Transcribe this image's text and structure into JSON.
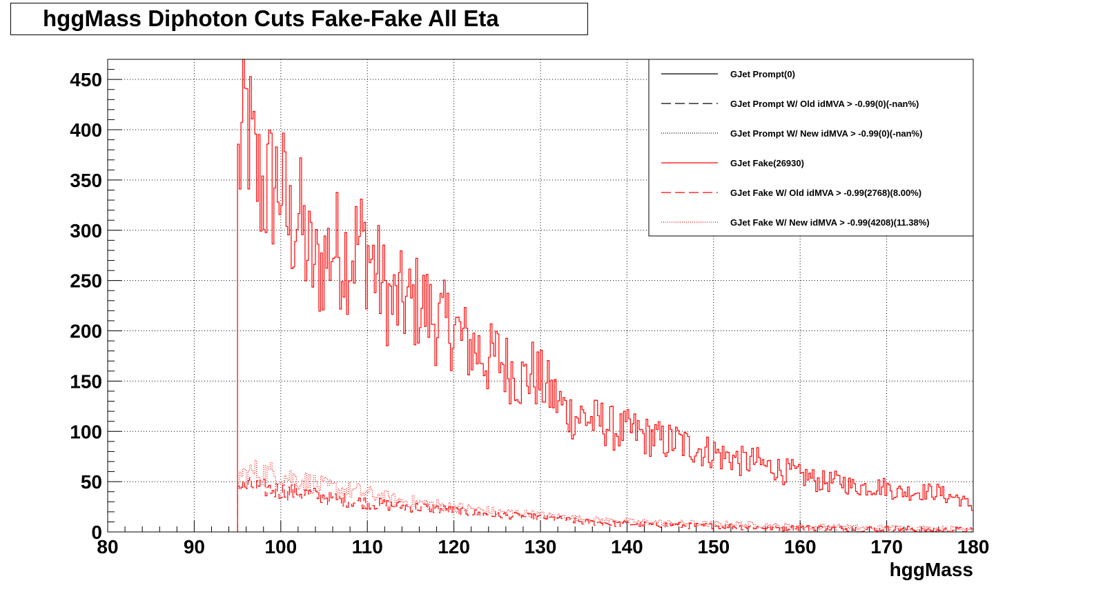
{
  "chart_data": {
    "type": "step-histogram",
    "title": "hggMass Diphoton Cuts Fake-Fake All Eta",
    "xlabel": "hggMass",
    "ylabel": "",
    "xlim": [
      80,
      180
    ],
    "ylim": [
      0,
      470
    ],
    "x_ticks": [
      "80",
      "90",
      "100",
      "110",
      "120",
      "130",
      "140",
      "150",
      "160",
      "170",
      "180"
    ],
    "y_ticks": [
      "0",
      "50",
      "100",
      "150",
      "200",
      "250",
      "300",
      "350",
      "400",
      "450"
    ],
    "grid": true,
    "legend_position": "top-right",
    "bin_width": 0.2,
    "series": [
      {
        "name": "GJet Prompt(0)",
        "color": "#000000",
        "style": "solid",
        "values": []
      },
      {
        "name": "GJet Prompt W/ Old idMVA > -0.99(0)(-nan%)",
        "color": "#000000",
        "style": "dashed",
        "values": []
      },
      {
        "name": "GJet Prompt W/ New idMVA > -0.99(0)(-nan%)",
        "color": "#000000",
        "style": "dotted",
        "values": []
      },
      {
        "name": "GJet Fake(26930)",
        "color": "#ff0000",
        "style": "solid",
        "points": [
          [
            95,
            355
          ],
          [
            96,
            415
          ],
          [
            97,
            360
          ],
          [
            98,
            340
          ],
          [
            99,
            345
          ],
          [
            100,
            350
          ],
          [
            101,
            300
          ],
          [
            102,
            320
          ],
          [
            103,
            280
          ],
          [
            104,
            260
          ],
          [
            105,
            270
          ],
          [
            106,
            285
          ],
          [
            107,
            280
          ],
          [
            108,
            275
          ],
          [
            109,
            290
          ],
          [
            110,
            280
          ],
          [
            111,
            260
          ],
          [
            112,
            240
          ],
          [
            113,
            225
          ],
          [
            114,
            230
          ],
          [
            115,
            225
          ],
          [
            116,
            230
          ],
          [
            117,
            220
          ],
          [
            118,
            210
          ],
          [
            119,
            205
          ],
          [
            120,
            205
          ],
          [
            121,
            190
          ],
          [
            122,
            185
          ],
          [
            123,
            180
          ],
          [
            124,
            170
          ],
          [
            125,
            175
          ],
          [
            126,
            165
          ],
          [
            127,
            160
          ],
          [
            128,
            150
          ],
          [
            129,
            160
          ],
          [
            130,
            150
          ],
          [
            131,
            140
          ],
          [
            132,
            130
          ],
          [
            133,
            120
          ],
          [
            134,
            115
          ],
          [
            135,
            115
          ],
          [
            136,
            110
          ],
          [
            137,
            110
          ],
          [
            138,
            105
          ],
          [
            139,
            100
          ],
          [
            140,
            100
          ],
          [
            141,
            100
          ],
          [
            142,
            95
          ],
          [
            143,
            95
          ],
          [
            144,
            90
          ],
          [
            145,
            90
          ],
          [
            146,
            90
          ],
          [
            147,
            85
          ],
          [
            148,
            85
          ],
          [
            149,
            80
          ],
          [
            150,
            80
          ],
          [
            151,
            75
          ],
          [
            152,
            75
          ],
          [
            153,
            70
          ],
          [
            154,
            70
          ],
          [
            155,
            70
          ],
          [
            156,
            65
          ],
          [
            157,
            65
          ],
          [
            158,
            60
          ],
          [
            159,
            60
          ],
          [
            160,
            55
          ],
          [
            161,
            55
          ],
          [
            162,
            50
          ],
          [
            163,
            50
          ],
          [
            164,
            50
          ],
          [
            165,
            50
          ],
          [
            166,
            45
          ],
          [
            167,
            45
          ],
          [
            168,
            45
          ],
          [
            169,
            45
          ],
          [
            170,
            45
          ],
          [
            171,
            40
          ],
          [
            172,
            40
          ],
          [
            173,
            40
          ],
          [
            174,
            40
          ],
          [
            175,
            40
          ],
          [
            176,
            40
          ],
          [
            177,
            35
          ],
          [
            178,
            35
          ],
          [
            179,
            30
          ],
          [
            180,
            25
          ]
        ]
      },
      {
        "name": "GJet Fake W/ Old idMVA > -0.99(2768)(8.00%)",
        "color": "#ff0000",
        "style": "dashed",
        "points": [
          [
            95,
            45
          ],
          [
            97,
            45
          ],
          [
            99,
            42
          ],
          [
            101,
            40
          ],
          [
            103,
            38
          ],
          [
            105,
            35
          ],
          [
            107,
            32
          ],
          [
            109,
            30
          ],
          [
            111,
            28
          ],
          [
            113,
            26
          ],
          [
            115,
            25
          ],
          [
            117,
            24
          ],
          [
            119,
            22
          ],
          [
            121,
            20
          ],
          [
            123,
            18
          ],
          [
            125,
            17
          ],
          [
            127,
            16
          ],
          [
            129,
            15
          ],
          [
            131,
            14
          ],
          [
            133,
            12
          ],
          [
            135,
            10
          ],
          [
            137,
            9
          ],
          [
            139,
            8
          ],
          [
            141,
            8
          ],
          [
            143,
            7
          ],
          [
            145,
            7
          ],
          [
            147,
            6
          ],
          [
            149,
            6
          ],
          [
            151,
            6
          ],
          [
            153,
            5
          ],
          [
            155,
            5
          ],
          [
            157,
            4
          ],
          [
            159,
            4
          ],
          [
            161,
            4
          ],
          [
            163,
            4
          ],
          [
            165,
            3
          ],
          [
            167,
            3
          ],
          [
            169,
            3
          ],
          [
            171,
            3
          ],
          [
            173,
            3
          ],
          [
            175,
            2
          ],
          [
            177,
            2
          ],
          [
            179,
            2
          ],
          [
            180,
            2
          ]
        ]
      },
      {
        "name": "GJet Fake W/ New idMVA > -0.99(4208)(11.38%)",
        "color": "#ff0000",
        "style": "dotted",
        "points": [
          [
            95,
            55
          ],
          [
            97,
            60
          ],
          [
            99,
            58
          ],
          [
            101,
            55
          ],
          [
            103,
            50
          ],
          [
            105,
            45
          ],
          [
            107,
            42
          ],
          [
            109,
            40
          ],
          [
            111,
            36
          ],
          [
            113,
            32
          ],
          [
            115,
            30
          ],
          [
            117,
            28
          ],
          [
            119,
            26
          ],
          [
            121,
            24
          ],
          [
            123,
            22
          ],
          [
            125,
            20
          ],
          [
            127,
            19
          ],
          [
            129,
            18
          ],
          [
            131,
            16
          ],
          [
            133,
            15
          ],
          [
            135,
            13
          ],
          [
            137,
            12
          ],
          [
            139,
            11
          ],
          [
            141,
            10
          ],
          [
            143,
            10
          ],
          [
            145,
            9
          ],
          [
            147,
            9
          ],
          [
            149,
            8
          ],
          [
            151,
            8
          ],
          [
            153,
            8
          ],
          [
            155,
            7
          ],
          [
            157,
            6
          ],
          [
            159,
            6
          ],
          [
            161,
            5
          ],
          [
            163,
            5
          ],
          [
            165,
            5
          ],
          [
            167,
            4
          ],
          [
            169,
            4
          ],
          [
            171,
            4
          ],
          [
            173,
            4
          ],
          [
            175,
            3
          ],
          [
            177,
            3
          ],
          [
            179,
            3
          ],
          [
            180,
            3
          ]
        ]
      }
    ]
  }
}
